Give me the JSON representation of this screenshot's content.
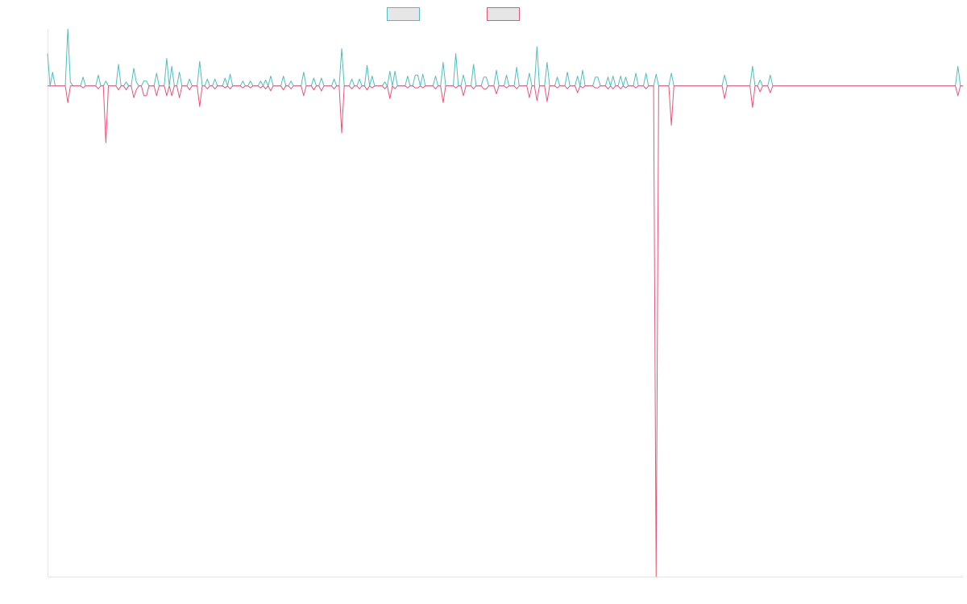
{
  "chart_data": {
    "type": "line",
    "title": "",
    "xlabel": "",
    "ylabel": "",
    "grid": false,
    "legend": "top-center",
    "ylim": [
      -100,
      11.6
    ],
    "series": [
      {
        "name": "",
        "color": "#4bc0c0",
        "fill": "#e6e6e6",
        "values": [
          6.6,
          0,
          2.8,
          0,
          0,
          0,
          0,
          0,
          11.6,
          0.8,
          0,
          0,
          0,
          0,
          1.8,
          0,
          0,
          0,
          0,
          0,
          2.2,
          0,
          0,
          1.0,
          0,
          0,
          0,
          0,
          4.4,
          0,
          0,
          0.8,
          0,
          0,
          3.6,
          0.8,
          0,
          0,
          1.0,
          1.0,
          0,
          0,
          0,
          2.6,
          0,
          0,
          0,
          5.6,
          0,
          4.0,
          0,
          0,
          2.8,
          0,
          0,
          0,
          1.4,
          0,
          0,
          0,
          5.0,
          0,
          0,
          1.4,
          0,
          0,
          1.4,
          0,
          0,
          0,
          1.6,
          0,
          2.4,
          0,
          0,
          0,
          0,
          1.0,
          0,
          0,
          1.0,
          0,
          0,
          0,
          1.0,
          0,
          1.2,
          0,
          2.0,
          0,
          0,
          0,
          0,
          2.0,
          0,
          0,
          1.0,
          0,
          0,
          0,
          0,
          2.8,
          0,
          0,
          0,
          1.6,
          0,
          0,
          1.6,
          0,
          0,
          0,
          0,
          1.4,
          0,
          0,
          7.6,
          0,
          0,
          0,
          1.4,
          0,
          0,
          1.4,
          0,
          0,
          4.2,
          0,
          2.0,
          0,
          0,
          0,
          0,
          0.8,
          0,
          3.0,
          0,
          3.0,
          0,
          0,
          0,
          0,
          2.0,
          0,
          0,
          2.2,
          2.2,
          0,
          2.4,
          0,
          0,
          0,
          0,
          2.0,
          0,
          0,
          4.8,
          0,
          0,
          0,
          0,
          6.6,
          0,
          0,
          2.2,
          0,
          0,
          0,
          4.4,
          0,
          0,
          0,
          1.8,
          1.8,
          0,
          0,
          0,
          3.2,
          0,
          0,
          0,
          2.2,
          0,
          0,
          0,
          3.8,
          0,
          0,
          0,
          0,
          2.6,
          0,
          0,
          8.0,
          0,
          0,
          0,
          4.8,
          0,
          0,
          0,
          1.8,
          0,
          0,
          0,
          2.8,
          0,
          0,
          0,
          2.0,
          0,
          3.2,
          0,
          0,
          0,
          0,
          1.8,
          1.8,
          0,
          0,
          0,
          1.8,
          0,
          2.0,
          0,
          0,
          2.0,
          0,
          1.8,
          0,
          0,
          0,
          2.6,
          0,
          0,
          0,
          2.6,
          0,
          0,
          0,
          2.4,
          0,
          0,
          0,
          0,
          0,
          2.6,
          0,
          0,
          0,
          0,
          0,
          0,
          0,
          0,
          0,
          0,
          0,
          0,
          0,
          0,
          0,
          0,
          0,
          0,
          0,
          0,
          2.2,
          0,
          0,
          0,
          0,
          0,
          0,
          0,
          0,
          0,
          0,
          4.0,
          0,
          0,
          1.2,
          0,
          0,
          0,
          2.2,
          0,
          0,
          0,
          0,
          0,
          0,
          0,
          0,
          0,
          0,
          0,
          0,
          0,
          0,
          0,
          0,
          0,
          0,
          0,
          0,
          0,
          0,
          0,
          0,
          0,
          0,
          0,
          0,
          0,
          0,
          0,
          0,
          0,
          0,
          0,
          0,
          0,
          0,
          0,
          0,
          0,
          0,
          0,
          0,
          0,
          0,
          0,
          0,
          0,
          0,
          0,
          0,
          0,
          0,
          0,
          0,
          0,
          0,
          0,
          0,
          0,
          0,
          0,
          0,
          0,
          0,
          0,
          0,
          0,
          0,
          0,
          0,
          0,
          4.0,
          0,
          0
        ]
      },
      {
        "name": "",
        "color": "#e8557a",
        "fill": "#e6e6e6",
        "values": [
          0,
          0,
          0,
          0,
          0,
          0,
          0,
          0,
          -3.4,
          0,
          0,
          0,
          0,
          0,
          -0.4,
          0,
          0,
          0,
          0,
          0,
          -0.6,
          0,
          0,
          -11.6,
          0,
          0,
          0,
          0,
          -0.8,
          0,
          0,
          -0.8,
          0,
          0,
          -2.4,
          -0.8,
          0,
          0,
          -2.0,
          -2.0,
          0,
          0,
          0,
          -2.0,
          0,
          0,
          0,
          -2.0,
          0,
          -2.0,
          0,
          0,
          -2.4,
          0,
          0,
          0,
          -0.8,
          0,
          0,
          0,
          -4.2,
          0,
          0,
          -0.6,
          0,
          0,
          -0.6,
          0,
          0,
          0,
          -0.4,
          0,
          -0.6,
          0,
          0,
          0,
          0,
          -0.4,
          0,
          0,
          -0.4,
          0,
          0,
          0,
          -0.4,
          0,
          -0.6,
          0,
          -1.0,
          0,
          0,
          0,
          0,
          -0.8,
          0,
          0,
          -0.6,
          0,
          0,
          0,
          0,
          -2.0,
          0,
          0,
          0,
          -0.8,
          0,
          0,
          -1.0,
          0,
          0,
          0,
          0,
          -0.6,
          0,
          0,
          -9.6,
          0,
          0,
          0,
          -0.6,
          0,
          0,
          -0.6,
          0,
          0,
          -0.8,
          0,
          -0.4,
          0,
          0,
          0,
          0,
          -0.6,
          0,
          -2.6,
          0,
          -0.6,
          0,
          0,
          0,
          0,
          -0.4,
          0,
          0,
          -0.4,
          -0.4,
          0,
          -0.4,
          0,
          0,
          0,
          0,
          -0.6,
          0,
          0,
          -3.4,
          0,
          0,
          0,
          0,
          -0.4,
          0,
          0,
          -2.0,
          0,
          0,
          0,
          -0.6,
          0,
          0,
          0,
          -0.6,
          -0.6,
          0,
          0,
          0,
          -1.6,
          0,
          0,
          0,
          -0.4,
          0,
          0,
          0,
          -0.6,
          0,
          0,
          0,
          0,
          -2.4,
          0,
          0,
          -3.0,
          0,
          0,
          0,
          -3.2,
          0,
          0,
          0,
          -0.4,
          0,
          0,
          0,
          -0.6,
          0,
          0,
          0,
          -1.4,
          0,
          -0.4,
          0,
          0,
          0,
          0,
          -0.4,
          -0.4,
          0,
          0,
          0,
          -0.6,
          0,
          -0.6,
          0,
          0,
          -0.6,
          0,
          -0.4,
          0,
          0,
          0,
          -0.4,
          0,
          0,
          0,
          -0.6,
          0,
          0,
          0,
          -100,
          0,
          0,
          0,
          0,
          0,
          -8.0,
          0,
          0,
          0,
          0,
          0,
          0,
          0,
          0,
          0,
          0,
          0,
          0,
          0,
          0,
          0,
          0,
          0,
          0,
          0,
          0,
          -2.6,
          0,
          0,
          0,
          0,
          0,
          0,
          0,
          0,
          0,
          0,
          -4.4,
          0,
          0,
          -1.2,
          0,
          0,
          0,
          -1.4,
          0,
          0,
          0,
          0,
          0,
          0,
          0,
          0,
          0,
          0,
          0,
          0,
          0,
          0,
          0,
          0,
          0,
          0,
          0,
          0,
          0,
          0,
          0,
          0,
          0,
          0,
          0,
          0,
          0,
          0,
          0,
          0,
          0,
          0,
          0,
          0,
          0,
          0,
          0,
          0,
          0,
          0,
          0,
          0,
          0,
          0,
          0,
          0,
          0,
          0,
          0,
          0,
          0,
          0,
          0,
          0,
          0,
          0,
          0,
          0,
          0,
          0,
          0,
          0,
          0,
          0,
          0,
          0,
          0,
          0,
          0,
          0,
          0,
          -2.0,
          0,
          0
        ]
      }
    ]
  }
}
